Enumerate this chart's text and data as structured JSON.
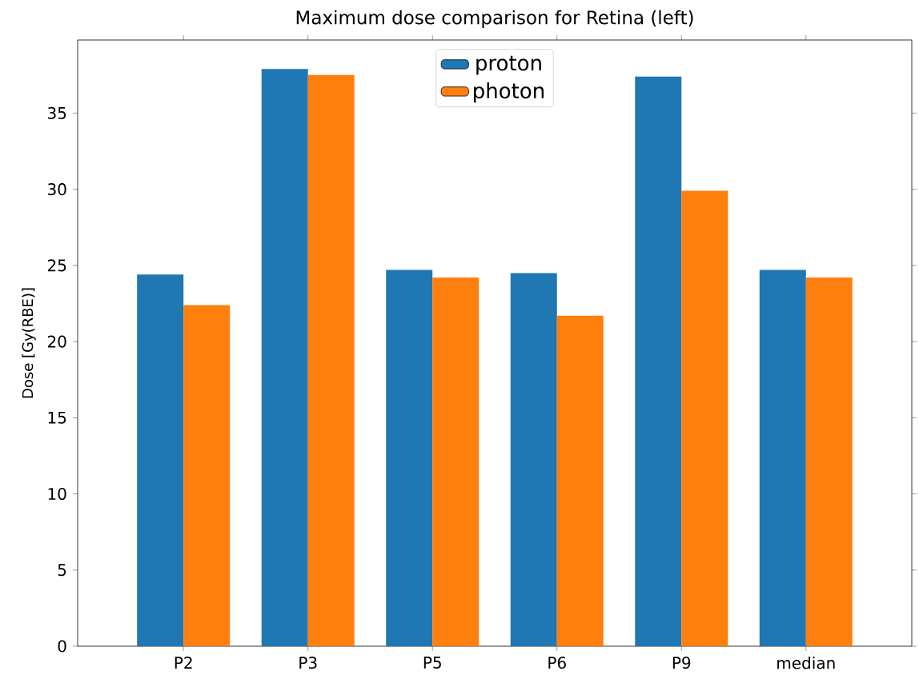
{
  "chart_data": {
    "type": "bar",
    "title": "Maximum dose comparison for Retina (left)",
    "ylabel": "Dose [Gy(RBE)]",
    "categories": [
      "P2",
      "P3",
      "P5",
      "P6",
      "P9",
      "median"
    ],
    "series": [
      {
        "name": "proton",
        "color": "#1f77b4",
        "values": [
          24.4,
          37.9,
          24.7,
          24.5,
          37.4,
          24.7
        ]
      },
      {
        "name": "photon",
        "color": "#ff7f0e",
        "values": [
          22.4,
          37.5,
          24.2,
          21.7,
          29.9,
          24.2
        ]
      }
    ],
    "ylim": [
      0,
      39.8
    ],
    "yticks": [
      0,
      5,
      10,
      15,
      20,
      25,
      30,
      35
    ],
    "legend": "top",
    "grid": false
  }
}
